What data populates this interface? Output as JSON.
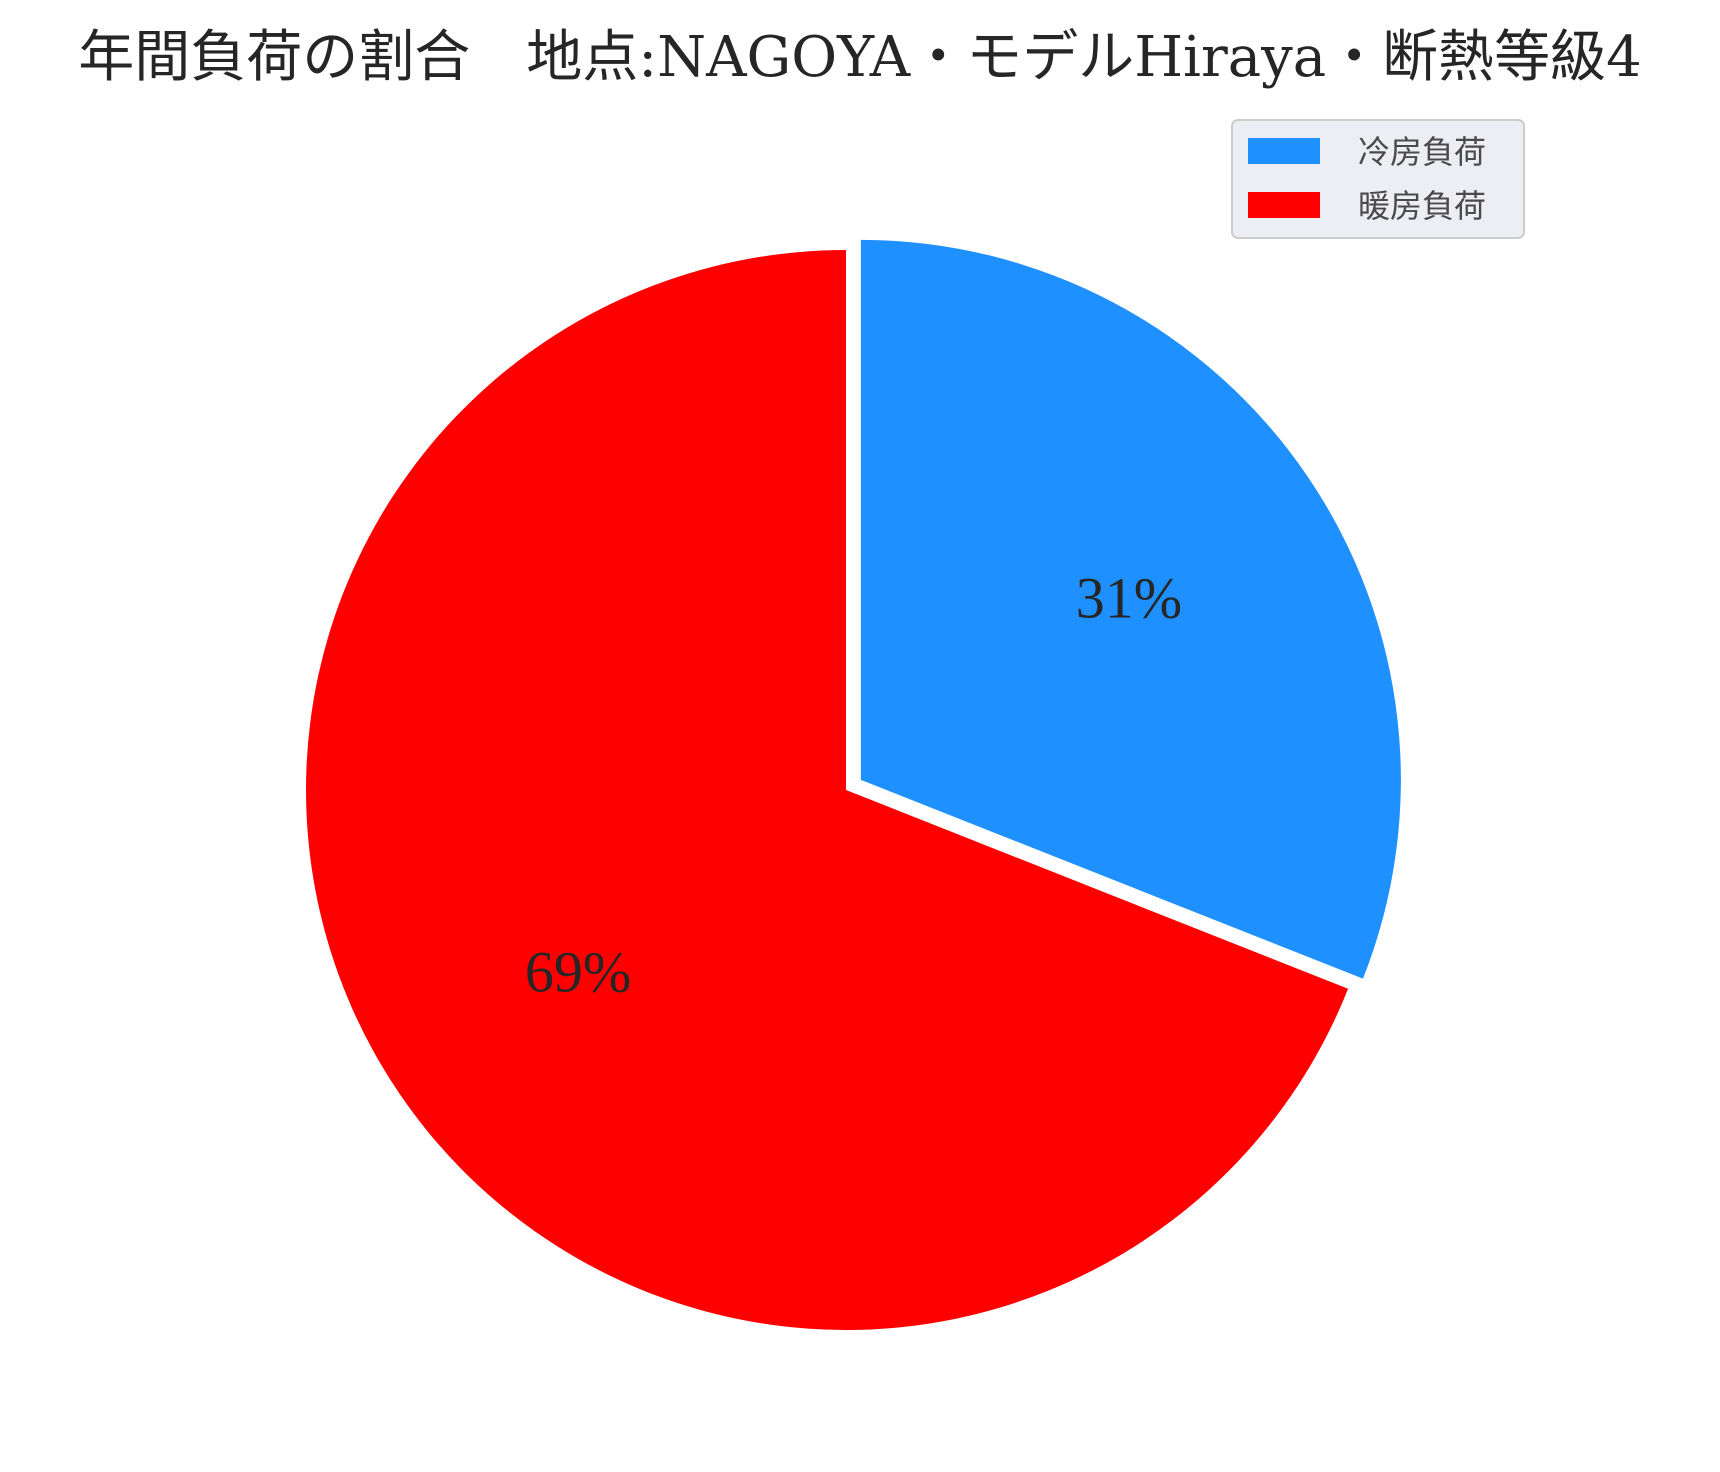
{
  "chart_data": {
    "type": "pie",
    "title": "年間負荷の割合　地点:NAGOYA・モデルHiraya・断熱等級4",
    "slices": [
      {
        "label": "冷房負荷",
        "value": 31,
        "display": "31%",
        "color": "#1E90FF",
        "exploded": true
      },
      {
        "label": "暖房負荷",
        "value": 69,
        "display": "69%",
        "color": "#FF0000",
        "exploded": false
      }
    ],
    "start_angle_deg": 90,
    "direction": "clockwise",
    "legend": {
      "placement": "upper-right",
      "background": "#EDEDF4",
      "border": "#CCCCCC"
    }
  }
}
